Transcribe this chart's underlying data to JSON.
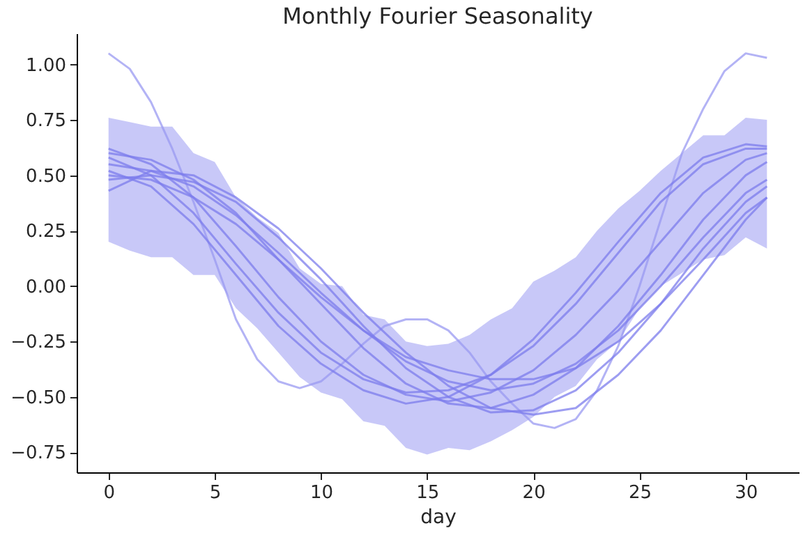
{
  "chart_data": {
    "type": "line",
    "title": "Monthly Fourier Seasonality",
    "xlabel": "day",
    "xlim": [
      -1.5,
      32.5
    ],
    "xticks": [
      0,
      5,
      10,
      15,
      20,
      25,
      30
    ],
    "ylim": [
      -0.84,
      1.14
    ],
    "yticks": [
      {
        "value": -0.75,
        "label": "−0.75"
      },
      {
        "value": -0.5,
        "label": "−0.50"
      },
      {
        "value": -0.25,
        "label": "−0.25"
      },
      {
        "value": 0,
        "label": "0.00"
      },
      {
        "value": 0.25,
        "label": "0.25"
      },
      {
        "value": 0.5,
        "label": "0.50"
      },
      {
        "value": 0.75,
        "label": "0.75"
      },
      {
        "value": 1,
        "label": "1.00"
      }
    ],
    "grid": false,
    "line_style": "solid",
    "series": [
      {
        "color": "#9a9af2",
        "x": [
          0,
          1,
          2,
          3,
          4,
          5,
          6,
          7,
          8,
          9,
          10,
          11,
          12,
          13,
          14,
          15,
          16,
          17,
          18,
          19,
          20,
          21,
          22,
          23,
          24,
          25,
          26,
          27,
          28,
          29,
          30,
          31
        ],
        "values": [
          1.05,
          0.98,
          0.83,
          0.62,
          0.38,
          0.12,
          -0.15,
          -0.33,
          -0.43,
          -0.46,
          -0.43,
          -0.35,
          -0.26,
          -0.18,
          -0.15,
          -0.15,
          -0.2,
          -0.3,
          -0.43,
          -0.53,
          -0.62,
          -0.64,
          -0.6,
          -0.47,
          -0.27,
          0.0,
          0.3,
          0.6,
          0.8,
          0.97,
          1.05,
          1.03
        ],
        "lower": [
          0.2,
          0.16,
          0.13,
          0.13,
          0.05,
          0.05,
          -0.1,
          -0.19,
          -0.3,
          -0.41,
          -0.48,
          -0.51,
          -0.61,
          -0.63,
          -0.73,
          -0.76,
          -0.73,
          -0.74,
          -0.7,
          -0.65,
          -0.59,
          -0.5,
          -0.45,
          -0.33,
          -0.25,
          -0.1,
          0.0,
          0.06,
          0.12,
          0.14,
          0.22,
          0.17
        ],
        "upper": [
          0.76,
          0.74,
          0.72,
          0.72,
          0.6,
          0.56,
          0.4,
          0.31,
          0.24,
          0.08,
          0.01,
          0.0,
          -0.13,
          -0.15,
          -0.25,
          -0.27,
          -0.26,
          -0.22,
          -0.15,
          -0.1,
          0.02,
          0.07,
          0.13,
          0.25,
          0.35,
          0.43,
          0.52,
          0.6,
          0.68,
          0.68,
          0.76,
          0.75
        ]
      },
      {
        "color": "#7c7cec",
        "x": [
          0,
          2,
          4,
          6,
          8,
          10,
          12,
          14,
          16,
          18,
          20,
          22,
          24,
          26,
          28,
          30,
          31
        ],
        "values": [
          0.62,
          0.55,
          0.4,
          0.18,
          -0.05,
          -0.25,
          -0.4,
          -0.49,
          -0.52,
          -0.48,
          -0.38,
          -0.22,
          -0.02,
          0.2,
          0.42,
          0.57,
          0.6
        ]
      },
      {
        "color": "#7c7cec",
        "x": [
          0,
          2,
          4,
          6,
          8,
          10,
          12,
          14,
          16,
          18,
          20,
          22,
          24,
          26,
          28,
          30,
          31
        ],
        "values": [
          0.6,
          0.57,
          0.48,
          0.33,
          0.12,
          -0.08,
          -0.28,
          -0.44,
          -0.53,
          -0.55,
          -0.49,
          -0.37,
          -0.18,
          0.05,
          0.3,
          0.5,
          0.56
        ]
      },
      {
        "color": "#7c7cec",
        "x": [
          0,
          2,
          4,
          6,
          8,
          10,
          12,
          14,
          16,
          18,
          20,
          22,
          24,
          26,
          28,
          30,
          31
        ],
        "values": [
          0.55,
          0.52,
          0.45,
          0.32,
          0.15,
          -0.03,
          -0.2,
          -0.34,
          -0.43,
          -0.47,
          -0.44,
          -0.35,
          -0.2,
          0.0,
          0.22,
          0.42,
          0.48
        ]
      },
      {
        "color": "#7c7cec",
        "x": [
          0,
          2,
          4,
          6,
          8,
          10,
          12,
          14,
          16,
          18,
          20,
          22,
          24,
          26,
          28,
          30,
          31
        ],
        "values": [
          0.48,
          0.5,
          0.47,
          0.38,
          0.22,
          0.03,
          -0.18,
          -0.37,
          -0.5,
          -0.57,
          -0.56,
          -0.47,
          -0.3,
          -0.08,
          0.17,
          0.38,
          0.45
        ]
      },
      {
        "color": "#7c7cec",
        "x": [
          0,
          2,
          4,
          6,
          8,
          10,
          12,
          14,
          16,
          18,
          20,
          22,
          24,
          26,
          28,
          30,
          31
        ],
        "values": [
          0.43,
          0.52,
          0.5,
          0.4,
          0.26,
          0.08,
          -0.12,
          -0.3,
          -0.45,
          -0.55,
          -0.58,
          -0.55,
          -0.4,
          -0.2,
          0.05,
          0.3,
          0.4
        ]
      },
      {
        "color": "#7c7cec",
        "x": [
          0,
          2,
          4,
          6,
          8,
          10,
          12,
          14,
          16,
          18,
          20,
          22,
          24,
          26,
          28,
          30,
          31
        ],
        "values": [
          0.58,
          0.5,
          0.33,
          0.1,
          -0.12,
          -0.3,
          -0.42,
          -0.48,
          -0.47,
          -0.4,
          -0.27,
          -0.08,
          0.15,
          0.38,
          0.55,
          0.62,
          0.62
        ]
      },
      {
        "color": "#7c7cec",
        "x": [
          0,
          2,
          4,
          6,
          8,
          10,
          12,
          14,
          16,
          18,
          20,
          22,
          24,
          26,
          28,
          30,
          31
        ],
        "values": [
          0.5,
          0.48,
          0.4,
          0.28,
          0.12,
          -0.05,
          -0.2,
          -0.32,
          -0.38,
          -0.42,
          -0.42,
          -0.37,
          -0.25,
          -0.08,
          0.12,
          0.33,
          0.4
        ]
      },
      {
        "color": "#7c7cec",
        "x": [
          0,
          2,
          4,
          6,
          8,
          10,
          12,
          14,
          16,
          18,
          20,
          22,
          24,
          26,
          28,
          30,
          31
        ],
        "values": [
          0.52,
          0.45,
          0.28,
          0.05,
          -0.18,
          -0.35,
          -0.47,
          -0.53,
          -0.5,
          -0.4,
          -0.24,
          -0.03,
          0.2,
          0.42,
          0.58,
          0.64,
          0.63
        ]
      }
    ]
  }
}
